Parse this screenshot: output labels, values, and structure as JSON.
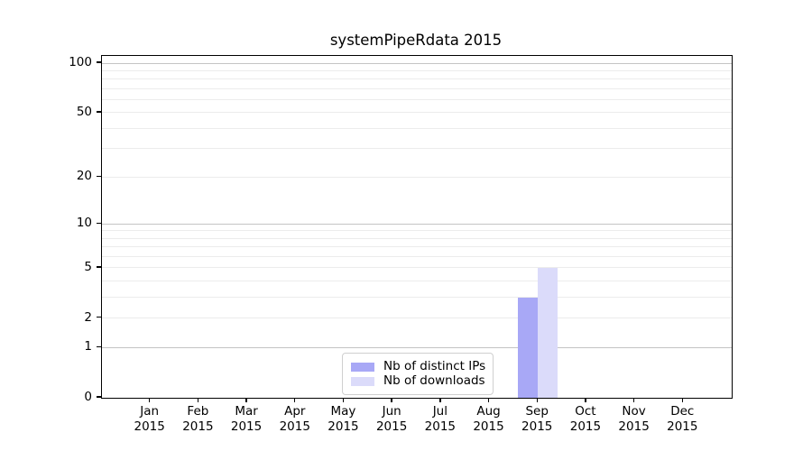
{
  "chart_data": {
    "type": "bar",
    "title": "systemPipeRdata 2015",
    "categories": [
      "Jan",
      "Feb",
      "Mar",
      "Apr",
      "May",
      "Jun",
      "Jul",
      "Aug",
      "Sep",
      "Oct",
      "Nov",
      "Dec"
    ],
    "x_tick_year": "2015",
    "series": [
      {
        "name": "Nb of distinct IPs",
        "color": "#a8a8f6",
        "values": [
          0,
          0,
          0,
          0,
          0,
          0,
          0,
          0,
          3,
          0,
          0,
          0
        ]
      },
      {
        "name": "Nb of downloads",
        "color": "#dbdbfa",
        "values": [
          0,
          0,
          0,
          0,
          0,
          0,
          0,
          0,
          5,
          0,
          0,
          0
        ]
      }
    ],
    "y_scale": "log1p",
    "y_ticks": [
      0,
      1,
      2,
      5,
      10,
      20,
      50,
      100
    ],
    "y_major_gridlines": [
      1,
      10,
      100
    ],
    "y_minor_gridlines": [
      2,
      3,
      4,
      5,
      6,
      7,
      8,
      9,
      20,
      30,
      40,
      50,
      60,
      70,
      80,
      90
    ],
    "ylim": [
      0,
      110
    ],
    "legend_position": "lower center",
    "grid": "horizontal",
    "colors": {
      "axis": "#000000",
      "major_grid": "#c4c4c4",
      "minor_grid": "#ececec",
      "background": "#ffffff"
    }
  }
}
